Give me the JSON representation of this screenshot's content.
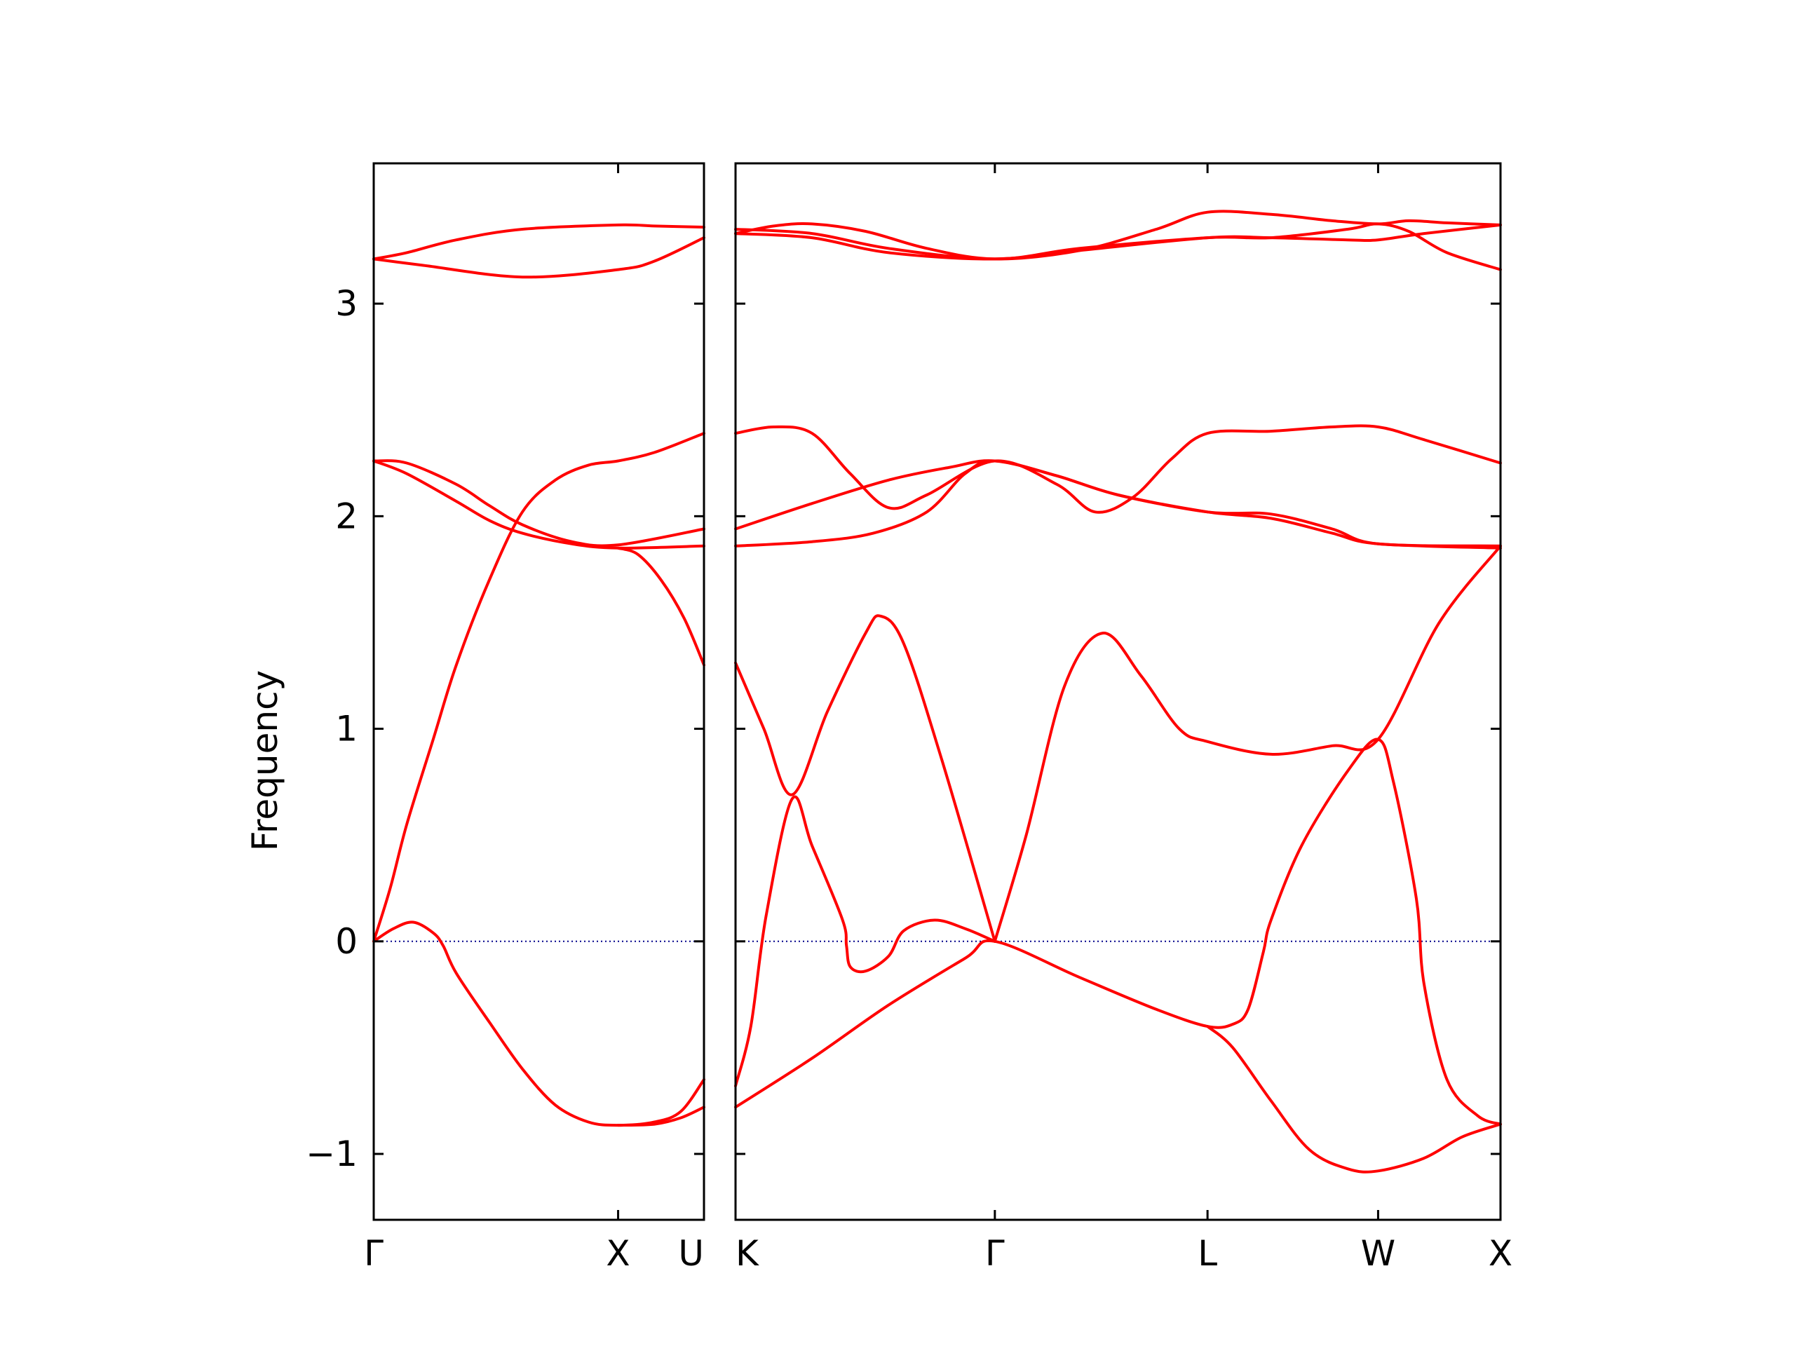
{
  "chart_data": {
    "type": "line",
    "ylabel": "Frequency",
    "ylim": [
      -1.31,
      3.66
    ],
    "yticks": [
      -1,
      0,
      1,
      2,
      3
    ],
    "ytick_labels": [
      "−1",
      "0",
      "1",
      "2",
      "3"
    ],
    "x_labels": [
      "Γ",
      "X",
      "U",
      "K",
      "Γ",
      "L",
      "W",
      "X"
    ],
    "zero_line_color": "#00008b",
    "band_color": "#ff0000",
    "segments": [
      {
        "path": [
          "Γ",
          "X",
          "U"
        ],
        "ticks": [
          0,
          0.74,
          1
        ],
        "bands": [
          [
            [
              0,
              3.21
            ],
            [
              0.1,
              3.24
            ],
            [
              0.25,
              3.3
            ],
            [
              0.45,
              3.35
            ],
            [
              0.74,
              3.37
            ],
            [
              0.85,
              3.365
            ],
            [
              1,
              3.36
            ]
          ],
          [
            [
              0,
              3.21
            ],
            [
              0.15,
              3.18
            ],
            [
              0.45,
              3.125
            ],
            [
              0.74,
              3.16
            ],
            [
              0.85,
              3.2
            ],
            [
              1,
              3.31
            ]
          ],
          [
            [
              0,
              2.26
            ],
            [
              0.1,
              2.25
            ],
            [
              0.25,
              2.15
            ],
            [
              0.35,
              2.05
            ],
            [
              0.45,
              1.96
            ],
            [
              0.6,
              1.88
            ],
            [
              0.74,
              1.865
            ],
            [
              1,
              1.94
            ]
          ],
          [
            [
              0,
              2.26
            ],
            [
              0.1,
              2.2
            ],
            [
              0.25,
              2.07
            ],
            [
              0.35,
              1.98
            ],
            [
              0.45,
              1.92
            ],
            [
              0.6,
              1.87
            ],
            [
              0.74,
              1.85
            ],
            [
              1,
              1.86
            ]
          ],
          [
            [
              0,
              0
            ],
            [
              0.05,
              0.25
            ],
            [
              0.1,
              0.55
            ],
            [
              0.18,
              0.95
            ],
            [
              0.25,
              1.3
            ],
            [
              0.35,
              1.7
            ],
            [
              0.45,
              2.02
            ],
            [
              0.55,
              2.17
            ],
            [
              0.65,
              2.24
            ],
            [
              0.74,
              2.26
            ],
            [
              0.85,
              2.3
            ],
            [
              1,
              2.39
            ]
          ],
          [
            [
              0,
              0
            ],
            [
              0.06,
              0.06
            ],
            [
              0.12,
              0.09
            ],
            [
              0.18,
              0.04
            ],
            [
              0.21,
              -0.02
            ],
            [
              0.25,
              -0.15
            ],
            [
              0.35,
              -0.38
            ],
            [
              0.45,
              -0.6
            ],
            [
              0.55,
              -0.77
            ],
            [
              0.65,
              -0.85
            ],
            [
              0.74,
              -0.865
            ],
            [
              0.85,
              -0.85
            ],
            [
              0.93,
              -0.8
            ],
            [
              1,
              -0.65
            ]
          ],
          [
            [
              0.74,
              1.85
            ],
            [
              0.8,
              1.82
            ],
            [
              0.87,
              1.7
            ],
            [
              0.94,
              1.52
            ],
            [
              1,
              1.3
            ]
          ],
          [
            [
              0.74,
              -0.865
            ],
            [
              0.85,
              -0.86
            ],
            [
              0.93,
              -0.83
            ],
            [
              1,
              -0.78
            ]
          ]
        ]
      },
      {
        "path": [
          "K",
          "Γ",
          "L",
          "W",
          "X"
        ],
        "ticks": [
          0,
          0.339,
          0.617,
          0.84,
          1
        ],
        "bands": [
          [
            [
              0,
              3.33
            ],
            [
              0.05,
              3.365
            ],
            [
              0.1,
              3.375
            ],
            [
              0.17,
              3.34
            ],
            [
              0.25,
              3.26
            ],
            [
              0.339,
              3.21
            ],
            [
              0.45,
              3.25
            ],
            [
              0.55,
              3.35
            ],
            [
              0.617,
              3.43
            ],
            [
              0.7,
              3.42
            ],
            [
              0.78,
              3.39
            ],
            [
              0.84,
              3.375
            ],
            [
              0.88,
              3.39
            ],
            [
              0.93,
              3.38
            ],
            [
              1,
              3.37
            ]
          ],
          [
            [
              0,
              3.35
            ],
            [
              0.1,
              3.33
            ],
            [
              0.2,
              3.26
            ],
            [
              0.339,
              3.21
            ],
            [
              0.45,
              3.26
            ],
            [
              0.617,
              3.31
            ],
            [
              0.7,
              3.31
            ],
            [
              0.8,
              3.35
            ],
            [
              0.84,
              3.375
            ],
            [
              0.88,
              3.34
            ],
            [
              0.93,
              3.24
            ],
            [
              1,
              3.16
            ]
          ],
          [
            [
              0,
              3.33
            ],
            [
              0.1,
              3.31
            ],
            [
              0.2,
              3.24
            ],
            [
              0.339,
              3.21
            ],
            [
              0.45,
              3.25
            ],
            [
              0.617,
              3.31
            ],
            [
              0.7,
              3.31
            ],
            [
              0.8,
              3.3
            ],
            [
              0.84,
              3.3
            ],
            [
              0.9,
              3.33
            ],
            [
              1,
              3.37
            ]
          ],
          [
            [
              0,
              2.39
            ],
            [
              0.05,
              2.42
            ],
            [
              0.1,
              2.39
            ],
            [
              0.15,
              2.2
            ],
            [
              0.2,
              2.04
            ],
            [
              0.25,
              2.1
            ],
            [
              0.339,
              2.26
            ],
            [
              0.42,
              2.15
            ],
            [
              0.47,
              2.02
            ],
            [
              0.52,
              2.09
            ],
            [
              0.57,
              2.27
            ],
            [
              0.617,
              2.39
            ],
            [
              0.7,
              2.4
            ],
            [
              0.78,
              2.42
            ],
            [
              0.84,
              2.42
            ],
            [
              0.9,
              2.36
            ],
            [
              1,
              2.25
            ]
          ],
          [
            [
              0,
              1.94
            ],
            [
              0.1,
              2.06
            ],
            [
              0.2,
              2.17
            ],
            [
              0.28,
              2.23
            ],
            [
              0.339,
              2.26
            ],
            [
              0.42,
              2.19
            ],
            [
              0.5,
              2.1
            ],
            [
              0.617,
              2.02
            ],
            [
              0.7,
              2.01
            ],
            [
              0.78,
              1.94
            ],
            [
              0.84,
              1.87
            ],
            [
              1,
              1.86
            ]
          ],
          [
            [
              0,
              1.86
            ],
            [
              0.1,
              1.88
            ],
            [
              0.18,
              1.92
            ],
            [
              0.25,
              2.02
            ],
            [
              0.3,
              2.2
            ],
            [
              0.339,
              2.26
            ],
            [
              0.42,
              2.19
            ],
            [
              0.5,
              2.1
            ],
            [
              0.617,
              2.02
            ],
            [
              0.7,
              1.99
            ],
            [
              0.78,
              1.92
            ],
            [
              0.84,
              1.87
            ],
            [
              1,
              1.85
            ]
          ],
          [
            [
              0,
              1.31
            ],
            [
              0.037,
              1.0
            ],
            [
              0.074,
              0.69
            ],
            [
              0.12,
              1.08
            ],
            [
              0.17,
              1.45
            ],
            [
              0.19,
              1.53
            ],
            [
              0.22,
              1.4
            ],
            [
              0.27,
              0.85
            ],
            [
              0.339,
              0
            ]
          ],
          [
            [
              0,
              -0.68
            ],
            [
              0.02,
              -0.4
            ],
            [
              0.04,
              0.12
            ],
            [
              0.074,
              0.67
            ],
            [
              0.1,
              0.45
            ],
            [
              0.14,
              0.1
            ],
            [
              0.145,
              -0.02
            ],
            [
              0.15,
              -0.12
            ],
            [
              0.17,
              -0.14
            ],
            [
              0.2,
              -0.07
            ],
            [
              0.22,
              0.05
            ],
            [
              0.26,
              0.1
            ],
            [
              0.3,
              0.06
            ],
            [
              0.339,
              0
            ]
          ],
          [
            [
              0.339,
              0
            ],
            [
              0.38,
              0.5
            ],
            [
              0.43,
              1.2
            ],
            [
              0.48,
              1.45
            ],
            [
              0.53,
              1.25
            ],
            [
              0.58,
              1.0
            ],
            [
              0.617,
              0.94
            ],
            [
              0.7,
              0.88
            ],
            [
              0.78,
              0.92
            ],
            [
              0.84,
              0.95
            ],
            [
              0.92,
              1.5
            ],
            [
              1,
              1.86
            ]
          ],
          [
            [
              0,
              -0.78
            ],
            [
              0.1,
              -0.55
            ],
            [
              0.2,
              -0.3
            ],
            [
              0.3,
              -0.08
            ],
            [
              0.339,
              0
            ],
            [
              0.45,
              -0.17
            ],
            [
              0.55,
              -0.32
            ],
            [
              0.617,
              -0.4
            ],
            [
              0.65,
              -0.39
            ],
            [
              0.67,
              -0.32
            ],
            [
              0.69,
              -0.05
            ],
            [
              0.7,
              0.1
            ],
            [
              0.74,
              0.45
            ],
            [
              0.8,
              0.8
            ],
            [
              0.84,
              0.95
            ],
            [
              0.86,
              0.75
            ],
            [
              0.89,
              0.2
            ],
            [
              0.9,
              -0.2
            ],
            [
              0.93,
              -0.65
            ],
            [
              0.97,
              -0.82
            ],
            [
              1,
              -0.86
            ]
          ],
          [
            [
              0.617,
              -0.4
            ],
            [
              0.65,
              -0.5
            ],
            [
              0.7,
              -0.75
            ],
            [
              0.75,
              -0.98
            ],
            [
              0.8,
              -1.07
            ],
            [
              0.84,
              -1.08
            ],
            [
              0.9,
              -1.02
            ],
            [
              0.95,
              -0.92
            ],
            [
              1,
              -0.86
            ]
          ]
        ]
      }
    ]
  }
}
